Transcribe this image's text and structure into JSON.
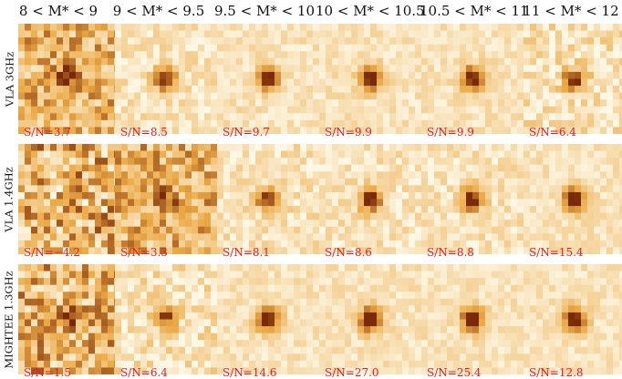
{
  "colors": {
    "sn_text": "#e8192c",
    "cmap_low": "#fdf8e6",
    "cmap_high": "#7a2a08"
  },
  "columns": [
    "8 < M* < 9",
    "9 < M* < 9.5",
    "9.5 < M* < 10",
    "10 < M* < 10.5",
    "10.5 < M* < 11",
    "11 < M* < 12"
  ],
  "rows": [
    {
      "label": "VLA 3GHz",
      "panels": [
        {
          "sn": "S/N=3.7",
          "snr": 3.7
        },
        {
          "sn": "S/N=8.5",
          "snr": 8.5
        },
        {
          "sn": "S/N=9.7",
          "snr": 9.7
        },
        {
          "sn": "S/N=9.9",
          "snr": 9.9
        },
        {
          "sn": "S/N=9.9",
          "snr": 9.9
        },
        {
          "sn": "S/N=6.4",
          "snr": 6.4
        }
      ]
    },
    {
      "label": "VLA 1.4GHz",
      "panels": [
        {
          "sn": "S/N=−4.2",
          "snr": -4.2
        },
        {
          "sn": "S/N=3.3",
          "snr": 3.3
        },
        {
          "sn": "S/N=8.1",
          "snr": 8.1
        },
        {
          "sn": "S/N=8.6",
          "snr": 8.6
        },
        {
          "sn": "S/N=8.8",
          "snr": 8.8
        },
        {
          "sn": "S/N=15.4",
          "snr": 15.4
        }
      ]
    },
    {
      "label": "MIGHTEE 1.3GHz",
      "panels": [
        {
          "sn": "S/N=1.5",
          "snr": 1.5
        },
        {
          "sn": "S/N=6.4",
          "snr": 6.4
        },
        {
          "sn": "S/N=14.6",
          "snr": 14.6
        },
        {
          "sn": "S/N=27.0",
          "snr": 27.0
        },
        {
          "sn": "S/N=25.4",
          "snr": 25.4
        },
        {
          "sn": "S/N=12.8",
          "snr": 12.8
        }
      ]
    }
  ]
}
